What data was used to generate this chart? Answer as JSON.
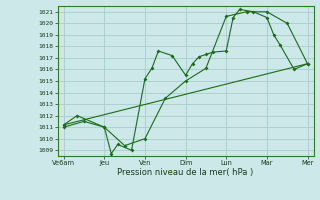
{
  "xlabel": "Pression niveau de la mer( hPa )",
  "xtick_labels": [
    "Ve6am",
    "Jeu",
    "Ven",
    "Dim",
    "Lun",
    "Mar",
    "Mer"
  ],
  "ytick_labels": [
    1009,
    1010,
    1011,
    1012,
    1013,
    1014,
    1015,
    1016,
    1017,
    1018,
    1019,
    1020,
    1021
  ],
  "ylim": [
    1008.5,
    1021.5
  ],
  "xlim": [
    -0.15,
    6.15
  ],
  "bg_color": "#cce8e8",
  "grid_color": "#aacccc",
  "line_color": "#1a6b1a",
  "line1_x": [
    0,
    0.33,
    1.0,
    1.17,
    1.33,
    1.67,
    2.0,
    2.17,
    2.33,
    2.67,
    3.0,
    3.17,
    3.33,
    3.5,
    3.67,
    4.0,
    4.17,
    4.33,
    4.67,
    5.0,
    5.17,
    5.33,
    5.67,
    6.0
  ],
  "line1_y": [
    1011.2,
    1012.0,
    1011.0,
    1008.7,
    1009.5,
    1009.0,
    1015.2,
    1016.1,
    1017.6,
    1017.2,
    1015.5,
    1016.5,
    1017.1,
    1017.3,
    1017.5,
    1017.6,
    1020.5,
    1021.2,
    1021.0,
    1020.5,
    1019.0,
    1018.1,
    1016.0,
    1016.5
  ],
  "line2_x": [
    0,
    0.5,
    1.0,
    1.5,
    2.0,
    2.5,
    3.0,
    3.5,
    4.0,
    4.5,
    5.0,
    5.5,
    6.0
  ],
  "line2_y": [
    1011.0,
    1011.5,
    1011.0,
    1009.4,
    1010.0,
    1013.5,
    1015.0,
    1016.1,
    1020.6,
    1021.0,
    1021.0,
    1020.0,
    1016.5
  ],
  "line3_x": [
    0,
    6.0
  ],
  "line3_y": [
    1011.2,
    1016.5
  ]
}
